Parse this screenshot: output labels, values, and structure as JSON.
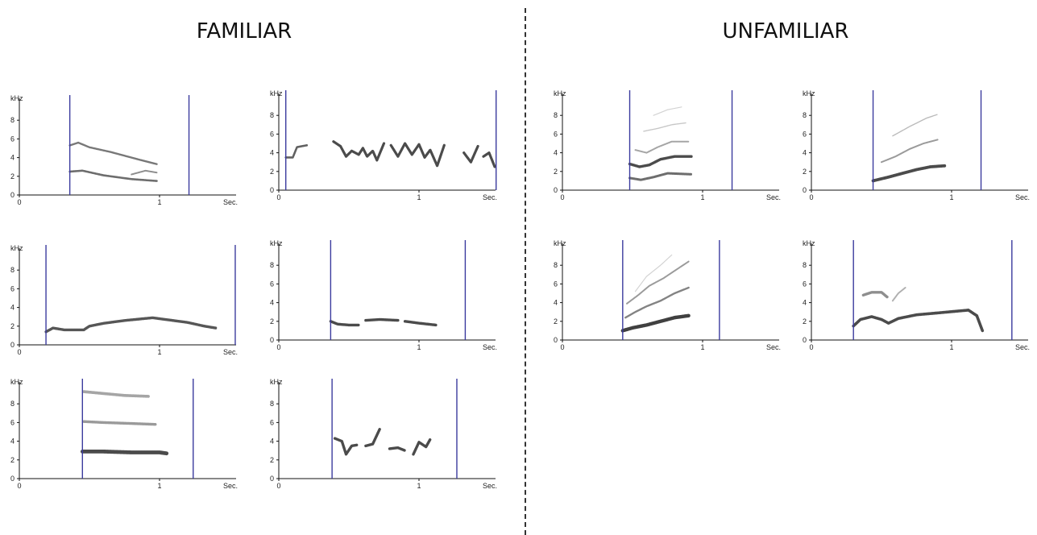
{
  "headings": {
    "left": "FAMILIAR",
    "right": "UNFAMILIAR"
  },
  "axis": {
    "y_unit": "kHz",
    "x_unit": "Sec.",
    "y_ticks": [
      "0",
      "2",
      "4",
      "6",
      "8"
    ],
    "x_ticks": [
      "0",
      "1"
    ]
  },
  "colors": {
    "marker": "#3b3b9e",
    "trace": "#1e1e1e",
    "axis": "#111111"
  },
  "panels": [
    {
      "group": "familiar",
      "markers": [
        0.36,
        1.21
      ],
      "traces": [
        {
          "pts": [
            [
              0.36,
              5.3
            ],
            [
              0.42,
              5.6
            ],
            [
              0.5,
              5.1
            ],
            [
              0.65,
              4.6
            ],
            [
              0.85,
              3.8
            ],
            [
              0.98,
              3.3
            ]
          ],
          "w": 2.4,
          "o": 0.6
        },
        {
          "pts": [
            [
              0.36,
              2.5
            ],
            [
              0.45,
              2.6
            ],
            [
              0.6,
              2.1
            ],
            [
              0.8,
              1.7
            ],
            [
              0.98,
              1.5
            ]
          ],
          "w": 2.6,
          "o": 0.65
        },
        {
          "pts": [
            [
              0.8,
              2.2
            ],
            [
              0.9,
              2.6
            ],
            [
              0.98,
              2.4
            ]
          ],
          "w": 2,
          "o": 0.5
        }
      ]
    },
    {
      "group": "familiar",
      "markers": [
        0.05,
        1.55
      ],
      "traces": [
        {
          "pts": [
            [
              0.05,
              3.5
            ],
            [
              0.1,
              3.5
            ],
            [
              0.13,
              4.6
            ],
            [
              0.2,
              4.8
            ]
          ],
          "w": 2.6,
          "o": 0.7
        },
        {
          "pts": [
            [
              0.39,
              5.2
            ],
            [
              0.44,
              4.7
            ],
            [
              0.48,
              3.6
            ],
            [
              0.52,
              4.2
            ],
            [
              0.57,
              3.8
            ],
            [
              0.6,
              4.5
            ],
            [
              0.63,
              3.6
            ],
            [
              0.67,
              4.2
            ],
            [
              0.7,
              3.2
            ],
            [
              0.75,
              5.0
            ]
          ],
          "w": 3.2,
          "o": 0.8
        },
        {
          "pts": [
            [
              0.8,
              4.8
            ],
            [
              0.85,
              3.6
            ],
            [
              0.9,
              5.0
            ],
            [
              0.95,
              3.8
            ],
            [
              1.0,
              4.9
            ],
            [
              1.04,
              3.5
            ],
            [
              1.08,
              4.3
            ],
            [
              1.13,
              2.6
            ],
            [
              1.18,
              4.8
            ]
          ],
          "w": 3.2,
          "o": 0.8
        },
        {
          "pts": [
            [
              1.32,
              4.0
            ],
            [
              1.37,
              3.0
            ],
            [
              1.42,
              4.7
            ]
          ],
          "w": 3.2,
          "o": 0.8
        },
        {
          "pts": [
            [
              1.46,
              3.6
            ],
            [
              1.5,
              4.0
            ],
            [
              1.54,
              2.5
            ]
          ],
          "w": 3.2,
          "o": 0.8
        }
      ]
    },
    {
      "group": "familiar",
      "markers": [
        0.19,
        1.54
      ],
      "traces": [
        {
          "pts": [
            [
              0.19,
              1.4
            ],
            [
              0.24,
              1.8
            ],
            [
              0.32,
              1.6
            ],
            [
              0.46,
              1.6
            ],
            [
              0.5,
              2.0
            ],
            [
              0.6,
              2.3
            ],
            [
              0.75,
              2.6
            ],
            [
              0.95,
              2.9
            ],
            [
              1.05,
              2.7
            ],
            [
              1.2,
              2.4
            ],
            [
              1.32,
              2.0
            ],
            [
              1.4,
              1.8
            ]
          ],
          "w": 3.4,
          "o": 0.75
        }
      ]
    },
    {
      "group": "familiar",
      "markers": [
        0.37,
        1.33
      ],
      "traces": [
        {
          "pts": [
            [
              0.37,
              2.0
            ],
            [
              0.42,
              1.7
            ],
            [
              0.5,
              1.6
            ],
            [
              0.57,
              1.6
            ]
          ],
          "w": 3.4,
          "o": 0.8
        },
        {
          "pts": [
            [
              0.62,
              2.1
            ],
            [
              0.72,
              2.2
            ],
            [
              0.85,
              2.1
            ]
          ],
          "w": 3.4,
          "o": 0.8
        },
        {
          "pts": [
            [
              0.9,
              2.0
            ],
            [
              1.0,
              1.8
            ],
            [
              1.12,
              1.6
            ]
          ],
          "w": 3.4,
          "o": 0.8
        }
      ]
    },
    {
      "group": "familiar",
      "markers": [
        0.45,
        1.24
      ],
      "traces": [
        {
          "pts": [
            [
              0.46,
              9.3
            ],
            [
              0.6,
              9.1
            ],
            [
              0.75,
              8.9
            ],
            [
              0.92,
              8.8
            ]
          ],
          "w": 3.6,
          "o": 0.4
        },
        {
          "pts": [
            [
              0.46,
              6.1
            ],
            [
              0.6,
              6.0
            ],
            [
              0.8,
              5.9
            ],
            [
              0.97,
              5.8
            ]
          ],
          "w": 3.4,
          "o": 0.45
        },
        {
          "pts": [
            [
              0.45,
              2.9
            ],
            [
              0.6,
              2.9
            ],
            [
              0.8,
              2.8
            ],
            [
              1.0,
              2.8
            ],
            [
              1.05,
              2.7
            ]
          ],
          "w": 4.8,
          "o": 0.8
        }
      ]
    },
    {
      "group": "familiar",
      "markers": [
        0.38,
        1.27
      ],
      "traces": [
        {
          "pts": [
            [
              0.4,
              4.3
            ],
            [
              0.45,
              4.0
            ],
            [
              0.48,
              2.6
            ],
            [
              0.52,
              3.5
            ],
            [
              0.56,
              3.6
            ]
          ],
          "w": 3.4,
          "o": 0.8
        },
        {
          "pts": [
            [
              0.62,
              3.5
            ],
            [
              0.67,
              3.7
            ],
            [
              0.72,
              5.3
            ]
          ],
          "w": 3.4,
          "o": 0.8
        },
        {
          "pts": [
            [
              0.79,
              3.2
            ],
            [
              0.85,
              3.3
            ],
            [
              0.9,
              3.0
            ]
          ],
          "w": 3.4,
          "o": 0.8
        },
        {
          "pts": [
            [
              0.96,
              2.6
            ],
            [
              1.0,
              3.9
            ],
            [
              1.05,
              3.4
            ],
            [
              1.08,
              4.2
            ]
          ],
          "w": 3.4,
          "o": 0.8
        }
      ]
    },
    {
      "group": "unfamiliar",
      "markers": [
        0.48,
        1.21
      ],
      "traces": [
        {
          "pts": [
            [
              0.48,
              2.8
            ],
            [
              0.55,
              2.5
            ],
            [
              0.62,
              2.7
            ],
            [
              0.7,
              3.3
            ],
            [
              0.8,
              3.6
            ],
            [
              0.92,
              3.6
            ]
          ],
          "w": 3.4,
          "o": 0.8
        },
        {
          "pts": [
            [
              0.48,
              1.3
            ],
            [
              0.56,
              1.1
            ],
            [
              0.65,
              1.4
            ],
            [
              0.75,
              1.8
            ],
            [
              0.92,
              1.7
            ]
          ],
          "w": 3,
          "o": 0.65
        },
        {
          "pts": [
            [
              0.52,
              4.3
            ],
            [
              0.6,
              4.0
            ],
            [
              0.68,
              4.6
            ],
            [
              0.78,
              5.2
            ],
            [
              0.9,
              5.2
            ]
          ],
          "w": 2,
          "o": 0.4
        },
        {
          "pts": [
            [
              0.58,
              6.3
            ],
            [
              0.68,
              6.6
            ],
            [
              0.78,
              7.0
            ],
            [
              0.88,
              7.2
            ]
          ],
          "w": 1.4,
          "o": 0.25
        },
        {
          "pts": [
            [
              0.65,
              8.0
            ],
            [
              0.75,
              8.6
            ],
            [
              0.85,
              8.9
            ]
          ],
          "w": 1.2,
          "o": 0.2
        }
      ]
    },
    {
      "group": "unfamiliar",
      "markers": [
        0.44,
        1.21
      ],
      "traces": [
        {
          "pts": [
            [
              0.44,
              1.0
            ],
            [
              0.55,
              1.4
            ],
            [
              0.65,
              1.8
            ],
            [
              0.75,
              2.2
            ],
            [
              0.85,
              2.5
            ],
            [
              0.95,
              2.6
            ]
          ],
          "w": 3.8,
          "o": 0.8
        },
        {
          "pts": [
            [
              0.5,
              3.0
            ],
            [
              0.6,
              3.6
            ],
            [
              0.7,
              4.4
            ],
            [
              0.8,
              5.0
            ],
            [
              0.9,
              5.4
            ]
          ],
          "w": 2,
          "o": 0.45
        },
        {
          "pts": [
            [
              0.58,
              5.8
            ],
            [
              0.7,
              6.8
            ],
            [
              0.82,
              7.7
            ],
            [
              0.9,
              8.1
            ]
          ],
          "w": 1.4,
          "o": 0.3
        }
      ]
    },
    {
      "group": "unfamiliar",
      "markers": [
        0.43,
        1.12
      ],
      "traces": [
        {
          "pts": [
            [
              0.43,
              1.0
            ],
            [
              0.5,
              1.3
            ],
            [
              0.6,
              1.6
            ],
            [
              0.7,
              2.0
            ],
            [
              0.8,
              2.4
            ],
            [
              0.9,
              2.6
            ]
          ],
          "w": 4.4,
          "o": 0.85
        },
        {
          "pts": [
            [
              0.45,
              2.4
            ],
            [
              0.52,
              3.0
            ],
            [
              0.6,
              3.6
            ],
            [
              0.7,
              4.2
            ],
            [
              0.8,
              5.0
            ],
            [
              0.9,
              5.6
            ]
          ],
          "w": 2.4,
          "o": 0.55
        },
        {
          "pts": [
            [
              0.46,
              3.9
            ],
            [
              0.54,
              4.8
            ],
            [
              0.62,
              5.8
            ],
            [
              0.72,
              6.6
            ],
            [
              0.82,
              7.6
            ],
            [
              0.9,
              8.4
            ]
          ],
          "w": 2,
          "o": 0.45
        },
        {
          "pts": [
            [
              0.52,
              5.2
            ],
            [
              0.6,
              6.8
            ],
            [
              0.7,
              8.0
            ],
            [
              0.78,
              9.1
            ]
          ],
          "w": 1.2,
          "o": 0.2
        }
      ]
    },
    {
      "group": "unfamiliar",
      "markers": [
        0.3,
        1.43
      ],
      "traces": [
        {
          "pts": [
            [
              0.3,
              1.5
            ],
            [
              0.35,
              2.2
            ],
            [
              0.43,
              2.5
            ],
            [
              0.5,
              2.2
            ],
            [
              0.55,
              1.8
            ],
            [
              0.62,
              2.3
            ],
            [
              0.75,
              2.7
            ],
            [
              0.9,
              2.9
            ],
            [
              1.05,
              3.1
            ],
            [
              1.12,
              3.2
            ],
            [
              1.18,
              2.6
            ],
            [
              1.22,
              1.0
            ]
          ],
          "w": 3.6,
          "o": 0.8
        },
        {
          "pts": [
            [
              0.37,
              4.8
            ],
            [
              0.43,
              5.1
            ],
            [
              0.5,
              5.1
            ],
            [
              0.54,
              4.6
            ]
          ],
          "w": 3.4,
          "o": 0.5
        },
        {
          "pts": [
            [
              0.58,
              4.2
            ],
            [
              0.62,
              5.0
            ],
            [
              0.67,
              5.6
            ]
          ],
          "w": 2,
          "o": 0.35
        }
      ]
    }
  ]
}
